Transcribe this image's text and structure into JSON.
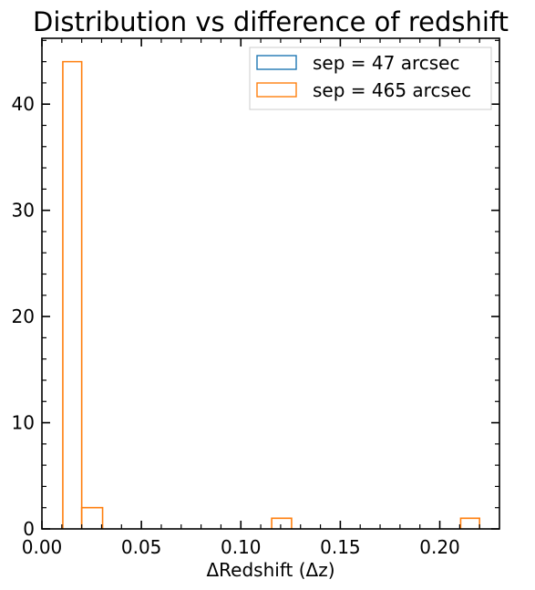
{
  "chart_data": {
    "type": "histogram",
    "title": "Distribution vs difference of redshift",
    "xlabel": "ΔRedshift (Δz)",
    "ylabel": "",
    "xlim": [
      0.0,
      0.23
    ],
    "ylim": [
      0,
      46.2
    ],
    "x_ticks": [
      0.0,
      0.05,
      0.1,
      0.15,
      0.2
    ],
    "x_tick_labels": [
      "0.00",
      "0.05",
      "0.10",
      "0.15",
      "0.20"
    ],
    "y_ticks": [
      0,
      10,
      20,
      30,
      40
    ],
    "y_tick_labels": [
      "0",
      "10",
      "20",
      "30",
      "40"
    ],
    "grid": false,
    "legend_position": "top-right",
    "series": [
      {
        "name": "sep = 47 arcsec",
        "color": "#1f77b4",
        "bins": []
      },
      {
        "name": "sep = 465 arcsec",
        "color": "#ff7f0e",
        "bins": [
          {
            "x0": 0.0105,
            "x1": 0.02,
            "count": 44
          },
          {
            "x0": 0.02,
            "x1": 0.0305,
            "count": 2
          },
          {
            "x0": 0.1155,
            "x1": 0.1255,
            "count": 1
          },
          {
            "x0": 0.2105,
            "x1": 0.22,
            "count": 1
          }
        ]
      }
    ]
  }
}
